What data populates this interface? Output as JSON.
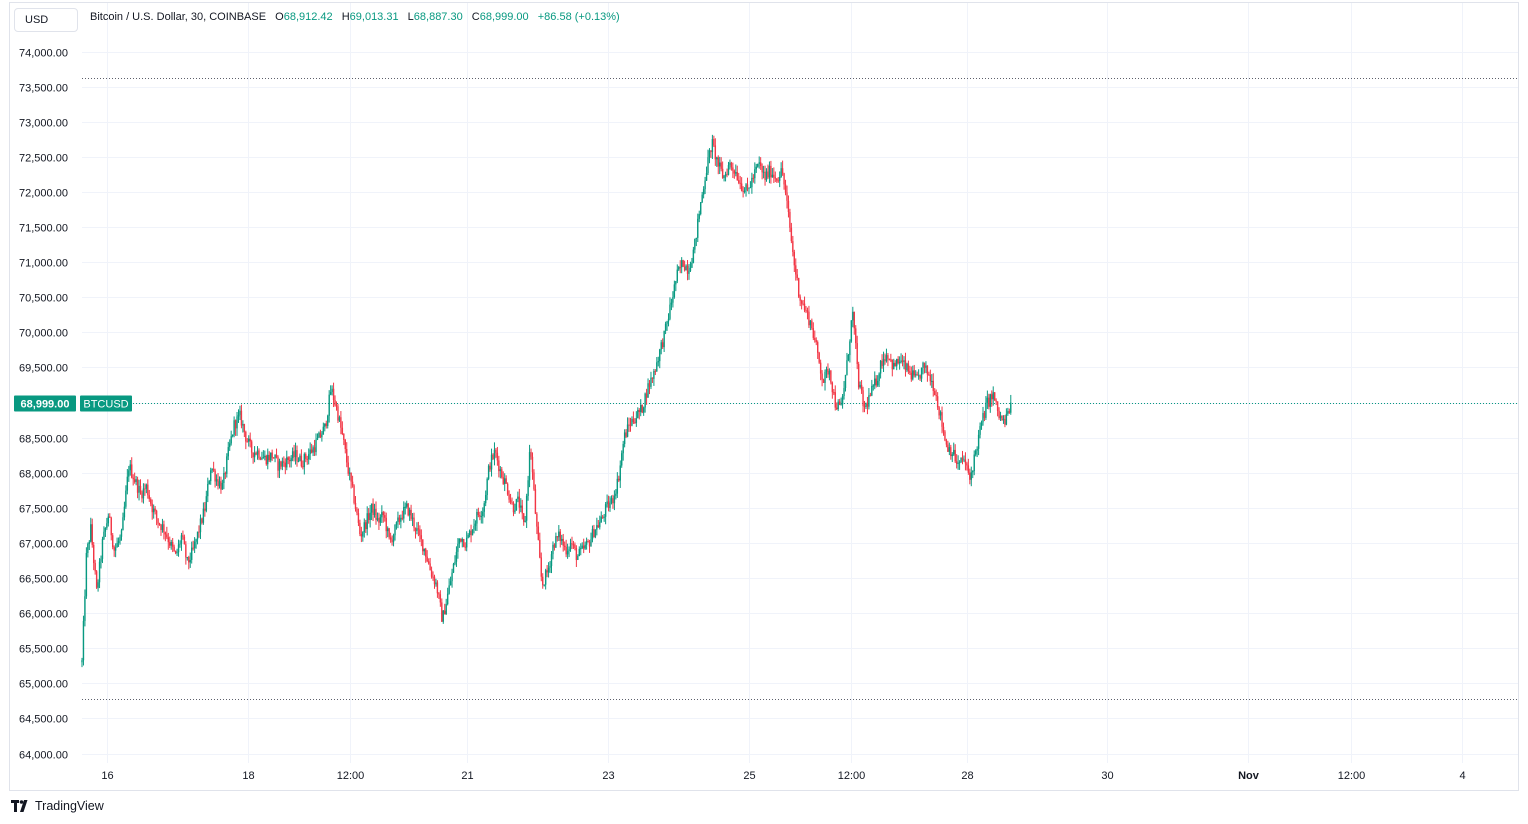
{
  "header": {
    "currency_button": "USD",
    "symbol_title": "Bitcoin / U.S. Dollar, 30, COINBASE",
    "open_label": "O",
    "open_value": "68,912.42",
    "high_label": "H",
    "high_value": "69,013.31",
    "low_label": "L",
    "low_value": "68,887.30",
    "close_label": "C",
    "close_value": "68,999.00",
    "change_value": "+86.58 (+0.13%)"
  },
  "price_badge": {
    "value": "68,999.00",
    "symbol": "BTCUSD"
  },
  "brand": {
    "name": "TradingView"
  },
  "colors": {
    "up": "#089981",
    "down": "#f23645",
    "grid": "#f0f3fa",
    "axis_text": "#131722"
  },
  "chart_data": {
    "type": "candlestick",
    "title": "Bitcoin / U.S. Dollar, 30, COINBASE",
    "interval": "30 minutes",
    "ylim": [
      63750,
      74300
    ],
    "ytick_labels": [
      "64,000.00",
      "64,500.00",
      "65,000.00",
      "65,500.00",
      "66,000.00",
      "66,500.00",
      "67,000.00",
      "67,500.00",
      "68,000.00",
      "68,500.00",
      "69,000.00",
      "69,500.00",
      "70,000.00",
      "70,500.00",
      "71,000.00",
      "71,500.00",
      "72,000.00",
      "72,500.00",
      "73,000.00",
      "73,500.00",
      "74,000.00"
    ],
    "ytick_values": [
      64000,
      64500,
      65000,
      65500,
      66000,
      66500,
      67000,
      67500,
      68000,
      68500,
      69000,
      69500,
      70000,
      70500,
      71000,
      71500,
      72000,
      72500,
      73000,
      73500,
      74000
    ],
    "xtick_labels": [
      "16",
      "18",
      "12:00",
      "21",
      "23",
      "25",
      "12:00",
      "28",
      "30",
      "Nov",
      "12:00",
      "4"
    ],
    "xtick_bold": [
      false,
      false,
      false,
      false,
      false,
      false,
      false,
      false,
      false,
      true,
      false,
      false
    ],
    "xtick_times": [
      17,
      113,
      183,
      263,
      359,
      455,
      525,
      604,
      700,
      796,
      866,
      942
    ],
    "x_range": [
      0,
      970
    ],
    "dotted_high": 73620,
    "dotted_low": 64780,
    "last_price": 68999,
    "grid": true,
    "path": [
      [
        0,
        65300
      ],
      [
        3,
        66800
      ],
      [
        6,
        67200
      ],
      [
        10,
        66300
      ],
      [
        14,
        67000
      ],
      [
        18,
        67400
      ],
      [
        22,
        66900
      ],
      [
        27,
        67100
      ],
      [
        32,
        68100
      ],
      [
        36,
        67900
      ],
      [
        40,
        67700
      ],
      [
        44,
        67800
      ],
      [
        48,
        67500
      ],
      [
        52,
        67300
      ],
      [
        56,
        67200
      ],
      [
        60,
        67000
      ],
      [
        64,
        66800
      ],
      [
        68,
        67100
      ],
      [
        72,
        66700
      ],
      [
        76,
        66900
      ],
      [
        80,
        67200
      ],
      [
        84,
        67500
      ],
      [
        88,
        68100
      ],
      [
        92,
        67900
      ],
      [
        96,
        67800
      ],
      [
        100,
        68300
      ],
      [
        104,
        68700
      ],
      [
        108,
        68800
      ],
      [
        112,
        68500
      ],
      [
        116,
        68300
      ],
      [
        120,
        68300
      ],
      [
        125,
        68200
      ],
      [
        130,
        68250
      ],
      [
        134,
        68100
      ],
      [
        138,
        68150
      ],
      [
        142,
        68200
      ],
      [
        146,
        68250
      ],
      [
        150,
        68150
      ],
      [
        154,
        68250
      ],
      [
        158,
        68350
      ],
      [
        162,
        68500
      ],
      [
        166,
        68650
      ],
      [
        170,
        69200
      ],
      [
        174,
        68900
      ],
      [
        178,
        68500
      ],
      [
        182,
        68000
      ],
      [
        186,
        67600
      ],
      [
        190,
        67100
      ],
      [
        194,
        67300
      ],
      [
        198,
        67500
      ],
      [
        202,
        67300
      ],
      [
        206,
        67400
      ],
      [
        210,
        67000
      ],
      [
        214,
        67200
      ],
      [
        218,
        67400
      ],
      [
        222,
        67500
      ],
      [
        226,
        67300
      ],
      [
        230,
        67100
      ],
      [
        234,
        66900
      ],
      [
        238,
        66600
      ],
      [
        242,
        66400
      ],
      [
        246,
        65900
      ],
      [
        250,
        66300
      ],
      [
        254,
        66700
      ],
      [
        258,
        67100
      ],
      [
        262,
        67000
      ],
      [
        266,
        67200
      ],
      [
        270,
        67400
      ],
      [
        274,
        67500
      ],
      [
        278,
        68100
      ],
      [
        282,
        68300
      ],
      [
        286,
        68000
      ],
      [
        290,
        67800
      ],
      [
        294,
        67500
      ],
      [
        298,
        67600
      ],
      [
        302,
        67200
      ],
      [
        306,
        68400
      ],
      [
        310,
        67300
      ],
      [
        314,
        66400
      ],
      [
        318,
        66600
      ],
      [
        322,
        67000
      ],
      [
        326,
        67100
      ],
      [
        330,
        66900
      ],
      [
        334,
        67000
      ],
      [
        338,
        66800
      ],
      [
        342,
        66900
      ],
      [
        346,
        67000
      ],
      [
        350,
        67200
      ],
      [
        354,
        67300
      ],
      [
        358,
        67500
      ],
      [
        362,
        67600
      ],
      [
        366,
        67900
      ],
      [
        370,
        68500
      ],
      [
        374,
        68700
      ],
      [
        378,
        68800
      ],
      [
        382,
        68900
      ],
      [
        386,
        69200
      ],
      [
        390,
        69400
      ],
      [
        394,
        69700
      ],
      [
        398,
        70000
      ],
      [
        402,
        70400
      ],
      [
        406,
        70800
      ],
      [
        410,
        71000
      ],
      [
        414,
        70900
      ],
      [
        418,
        71200
      ],
      [
        422,
        71800
      ],
      [
        426,
        72300
      ],
      [
        430,
        72700
      ],
      [
        434,
        72400
      ],
      [
        438,
        72200
      ],
      [
        442,
        72400
      ],
      [
        446,
        72300
      ],
      [
        450,
        72100
      ],
      [
        454,
        72000
      ],
      [
        458,
        72200
      ],
      [
        462,
        72400
      ],
      [
        466,
        72200
      ],
      [
        470,
        72300
      ],
      [
        474,
        72200
      ],
      [
        478,
        72300
      ],
      [
        482,
        71700
      ],
      [
        486,
        71000
      ],
      [
        490,
        70500
      ],
      [
        494,
        70300
      ],
      [
        498,
        70100
      ],
      [
        502,
        69700
      ],
      [
        506,
        69300
      ],
      [
        510,
        69500
      ],
      [
        514,
        69000
      ],
      [
        518,
        68900
      ],
      [
        522,
        69500
      ],
      [
        526,
        70300
      ],
      [
        530,
        69300
      ],
      [
        534,
        68900
      ],
      [
        538,
        69100
      ],
      [
        542,
        69300
      ],
      [
        546,
        69600
      ],
      [
        550,
        69700
      ],
      [
        554,
        69500
      ],
      [
        558,
        69600
      ],
      [
        562,
        69500
      ],
      [
        566,
        69400
      ],
      [
        570,
        69300
      ],
      [
        574,
        69500
      ],
      [
        578,
        69400
      ],
      [
        582,
        69200
      ],
      [
        586,
        68800
      ],
      [
        590,
        68400
      ],
      [
        594,
        68300
      ],
      [
        598,
        68100
      ],
      [
        602,
        68200
      ],
      [
        606,
        67900
      ],
      [
        610,
        68300
      ],
      [
        614,
        68700
      ],
      [
        618,
        69000
      ],
      [
        622,
        69100
      ],
      [
        626,
        68800
      ],
      [
        630,
        68700
      ],
      [
        634,
        69000
      ]
    ]
  }
}
